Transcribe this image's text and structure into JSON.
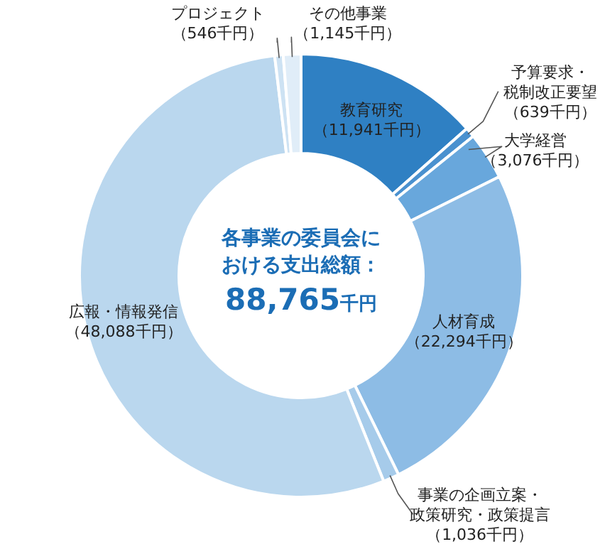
{
  "chart_data": {
    "type": "donut",
    "categories": [
      "教育研究",
      "予算要求・税制改正要望",
      "大学経営",
      "人材育成",
      "事業の企画立案・政策研究・政策提言",
      "広報・情報発信",
      "プロジェクト",
      "その他事業"
    ],
    "values": [
      11941,
      639,
      3076,
      22294,
      1036,
      48088,
      546,
      1145
    ],
    "colors": [
      "#2f80c3",
      "#4a91cf",
      "#68a7dc",
      "#8dbce5",
      "#a6cbea",
      "#bad7ee",
      "#cde2f3",
      "#e0edf8"
    ],
    "value_labels": [
      "（11,941千円）",
      "（639千円）",
      "（3,076千円）",
      "（22,294千円）",
      "（1,036千円）",
      "（48,088千円）",
      "（546千円）",
      "（1,145千円）"
    ],
    "annotations": [
      "各事業の委員会における支出総額：",
      "88,765千円"
    ]
  }
}
